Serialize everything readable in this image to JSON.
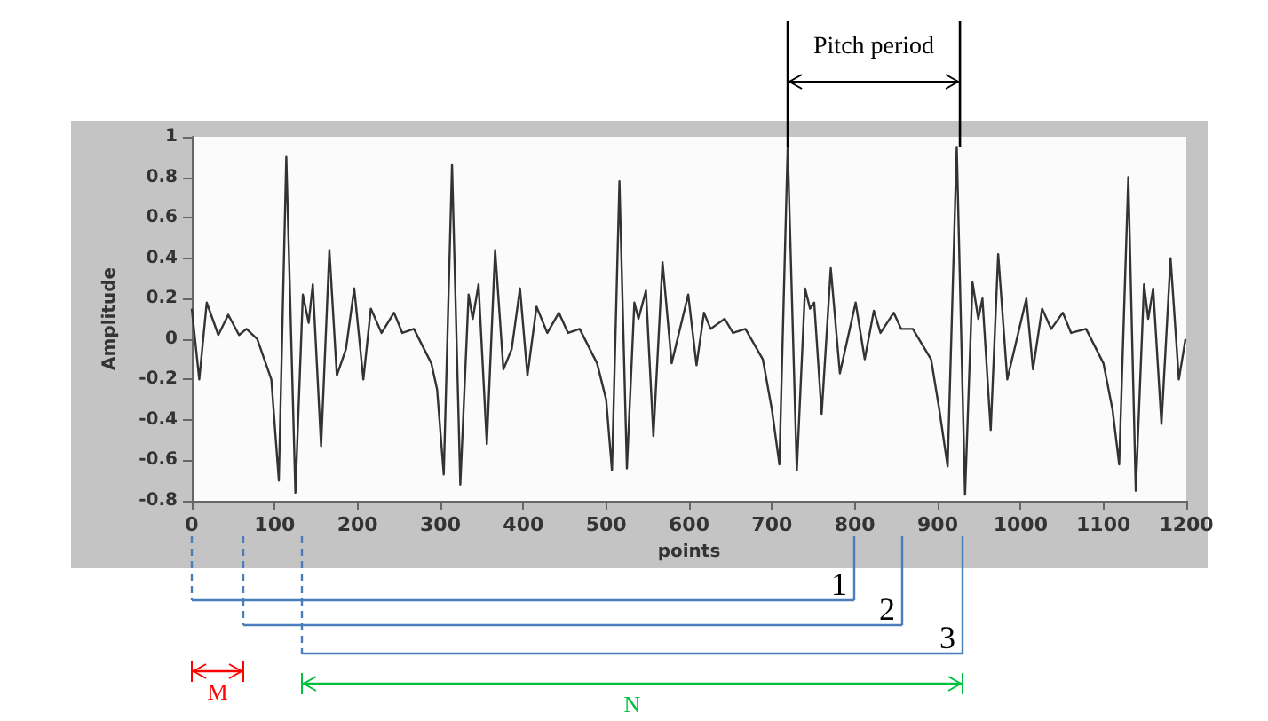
{
  "chart_data": {
    "type": "line",
    "xlabel": "points",
    "ylabel": "Amplitude",
    "x": [
      0,
      9,
      18,
      32,
      44,
      57,
      66,
      79,
      96,
      105,
      114,
      125,
      134,
      141,
      146,
      156,
      166,
      175,
      186,
      196,
      207,
      216,
      229,
      244,
      254,
      268,
      289,
      296,
      304,
      314,
      324,
      334,
      339,
      346,
      356,
      366,
      376,
      386,
      396,
      405,
      416,
      429,
      443,
      454,
      468,
      489,
      500,
      507,
      516,
      525,
      534,
      539,
      548,
      557,
      568,
      579,
      599,
      609,
      618,
      626,
      643,
      653,
      668,
      689,
      700,
      709,
      719,
      730,
      740,
      746,
      751,
      760,
      771,
      782,
      801,
      812,
      823,
      831,
      847,
      856,
      870,
      892,
      902,
      912,
      923,
      933,
      942,
      949,
      954,
      964,
      973,
      984,
      1007,
      1015,
      1026,
      1037,
      1051,
      1061,
      1079,
      1100,
      1111,
      1119,
      1130,
      1139,
      1149,
      1154,
      1160,
      1170,
      1181,
      1191,
      1199
    ],
    "series": [
      {
        "color": "#333333",
        "values": [
          0.15,
          -0.2,
          0.18,
          0.02,
          0.12,
          0.02,
          0.05,
          0,
          -0.2,
          -0.7,
          0.9,
          -0.76,
          0.22,
          0.08,
          0.27,
          -0.53,
          0.44,
          -0.18,
          -0.05,
          0.25,
          -0.2,
          0.15,
          0.03,
          0.13,
          0.03,
          0.05,
          -0.12,
          -0.25,
          -0.67,
          0.86,
          -0.72,
          0.22,
          0.1,
          0.27,
          -0.52,
          0.44,
          -0.15,
          -0.05,
          0.25,
          -0.18,
          0.16,
          0.03,
          0.13,
          0.03,
          0.05,
          -0.12,
          -0.3,
          -0.65,
          0.78,
          -0.64,
          0.18,
          0.1,
          0.24,
          -0.48,
          0.38,
          -0.12,
          0.22,
          -0.13,
          0.13,
          0.05,
          0.1,
          0.03,
          0.05,
          -0.1,
          -0.35,
          -0.62,
          0.95,
          -0.65,
          0.25,
          0.15,
          0.18,
          -0.37,
          0.35,
          -0.17,
          0.18,
          -0.1,
          0.14,
          0.03,
          0.13,
          0.05,
          0.05,
          -0.1,
          -0.35,
          -0.63,
          0.95,
          -0.77,
          0.28,
          0.1,
          0.2,
          -0.45,
          0.42,
          -0.2,
          0.2,
          -0.15,
          0.15,
          0.05,
          0.13,
          0.03,
          0.05,
          -0.12,
          -0.35,
          -0.62,
          0.8,
          -0.75,
          0.27,
          0.1,
          0.25,
          -0.42,
          0.4,
          -0.2,
          0
        ]
      }
    ],
    "xlim": [
      0,
      1200
    ],
    "xticks": [
      0,
      100,
      200,
      300,
      400,
      500,
      600,
      700,
      800,
      900,
      1000,
      1100,
      1200
    ],
    "ylim": [
      -0.8,
      1
    ],
    "yticks": [
      -0.8,
      -0.6,
      -0.4,
      -0.2,
      0,
      0.2,
      0.4,
      0.6,
      0.8,
      1
    ],
    "grid": false,
    "marker": "none",
    "line_style": "solid",
    "annotations": [
      {
        "text": "Pitch period",
        "x": 719,
        "y": 0.95
      },
      "1",
      "2",
      "3",
      "M",
      "N"
    ]
  }
}
